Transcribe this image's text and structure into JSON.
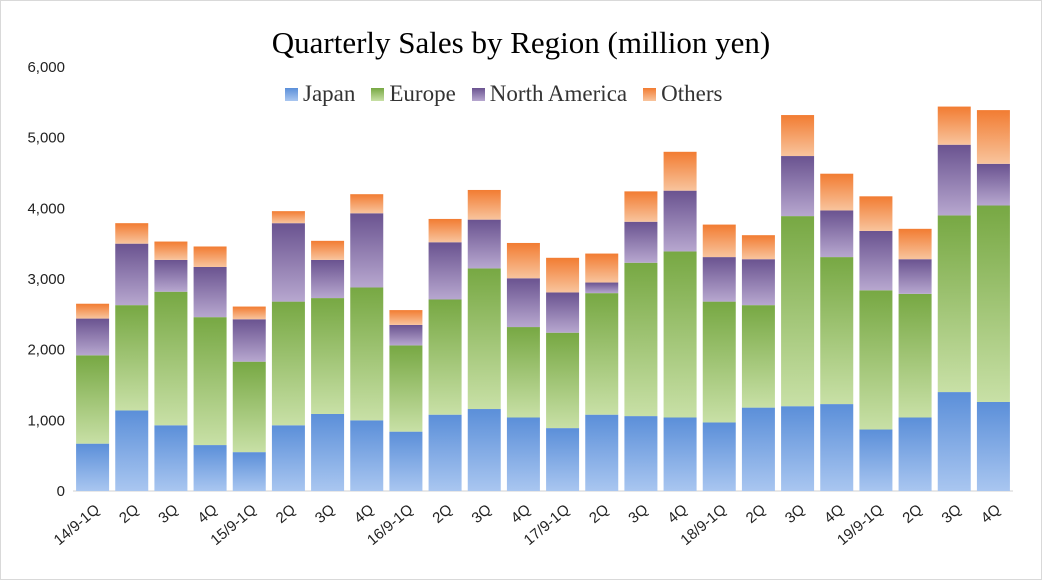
{
  "chart_data": {
    "type": "bar",
    "stacked": true,
    "title": "Quarterly Sales by Region (million yen)",
    "xlabel": "",
    "ylabel": "",
    "ylim": [
      0,
      6000
    ],
    "yticks": [
      0,
      1000,
      2000,
      3000,
      4000,
      5000,
      6000
    ],
    "ytick_labels": [
      "0",
      "1,000",
      "2,000",
      "3,000",
      "4,000",
      "5,000",
      "6,000"
    ],
    "grid": false,
    "legend_position": "top",
    "categories": [
      "14/9-1Q",
      "2Q",
      "3Q",
      "4Q",
      "15/9-1Q",
      "2Q",
      "3Q",
      "4Q",
      "16/9-1Q",
      "2Q",
      "3Q",
      "4Q",
      "17/9-1Q",
      "2Q",
      "3Q",
      "4Q",
      "18/9-1Q",
      "2Q",
      "3Q",
      "4Q",
      "19/9-1Q",
      "2Q",
      "3Q",
      "4Q"
    ],
    "series": [
      {
        "name": "Japan",
        "color": "#5b8fd9",
        "values": [
          670,
          1140,
          930,
          650,
          550,
          930,
          1090,
          1000,
          840,
          1080,
          1160,
          1040,
          890,
          1080,
          1060,
          1040,
          970,
          1180,
          1200,
          1230,
          870,
          1040,
          1400,
          1260
        ]
      },
      {
        "name": "Europe",
        "color": "#77a843",
        "values": [
          1250,
          1490,
          1890,
          1810,
          1280,
          1750,
          1640,
          1880,
          1220,
          1630,
          1990,
          1280,
          1350,
          1720,
          2170,
          2350,
          1710,
          1450,
          2690,
          2080,
          1970,
          1750,
          2500,
          2780
        ]
      },
      {
        "name": "North America",
        "color": "#6a5390",
        "values": [
          520,
          870,
          450,
          710,
          600,
          1110,
          540,
          1050,
          290,
          810,
          690,
          690,
          570,
          150,
          580,
          860,
          630,
          650,
          850,
          660,
          840,
          490,
          1000,
          590
        ]
      },
      {
        "name": "Others",
        "color": "#f27c32",
        "values": [
          210,
          290,
          260,
          290,
          180,
          170,
          270,
          270,
          210,
          330,
          420,
          500,
          490,
          410,
          430,
          550,
          460,
          340,
          580,
          520,
          490,
          430,
          540,
          760
        ]
      }
    ]
  }
}
